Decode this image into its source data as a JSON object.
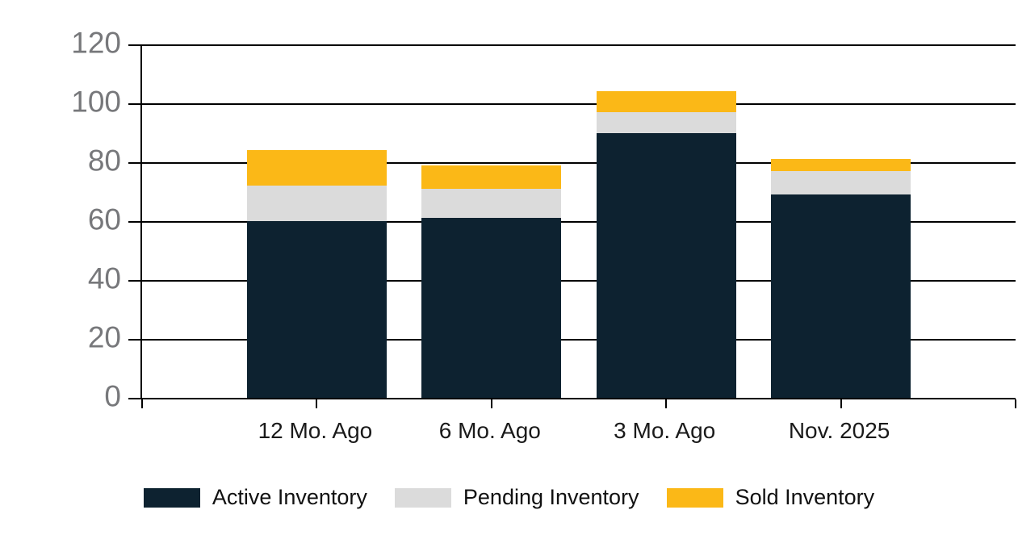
{
  "chart_data": {
    "type": "bar",
    "stacked": true,
    "title": "",
    "xlabel": "",
    "ylabel": "",
    "categories": [
      "12 Mo. Ago",
      "6 Mo. Ago",
      "3 Mo. Ago",
      "Nov. 2025"
    ],
    "series": [
      {
        "name": "Active Inventory",
        "color": "#0D2230",
        "values": [
          60,
          61,
          90,
          69
        ]
      },
      {
        "name": "Pending Inventory",
        "color": "#DBDBDB",
        "values": [
          12,
          10,
          7,
          8
        ]
      },
      {
        "name": "Sold Inventory",
        "color": "#FBB817",
        "values": [
          12,
          8,
          7,
          4
        ]
      }
    ],
    "stack_totals": [
      84,
      79,
      104,
      81
    ],
    "ylim": [
      0,
      120
    ],
    "yticks": [
      0,
      20,
      40,
      60,
      80,
      100,
      120
    ],
    "grid": true,
    "legend_position": "bottom"
  },
  "colors": {
    "background": "#FFFFFF",
    "axis_line": "#000000",
    "ytick_label": "#77787B",
    "xtick_label": "#1A1A1A",
    "legend_text": "#111111"
  }
}
